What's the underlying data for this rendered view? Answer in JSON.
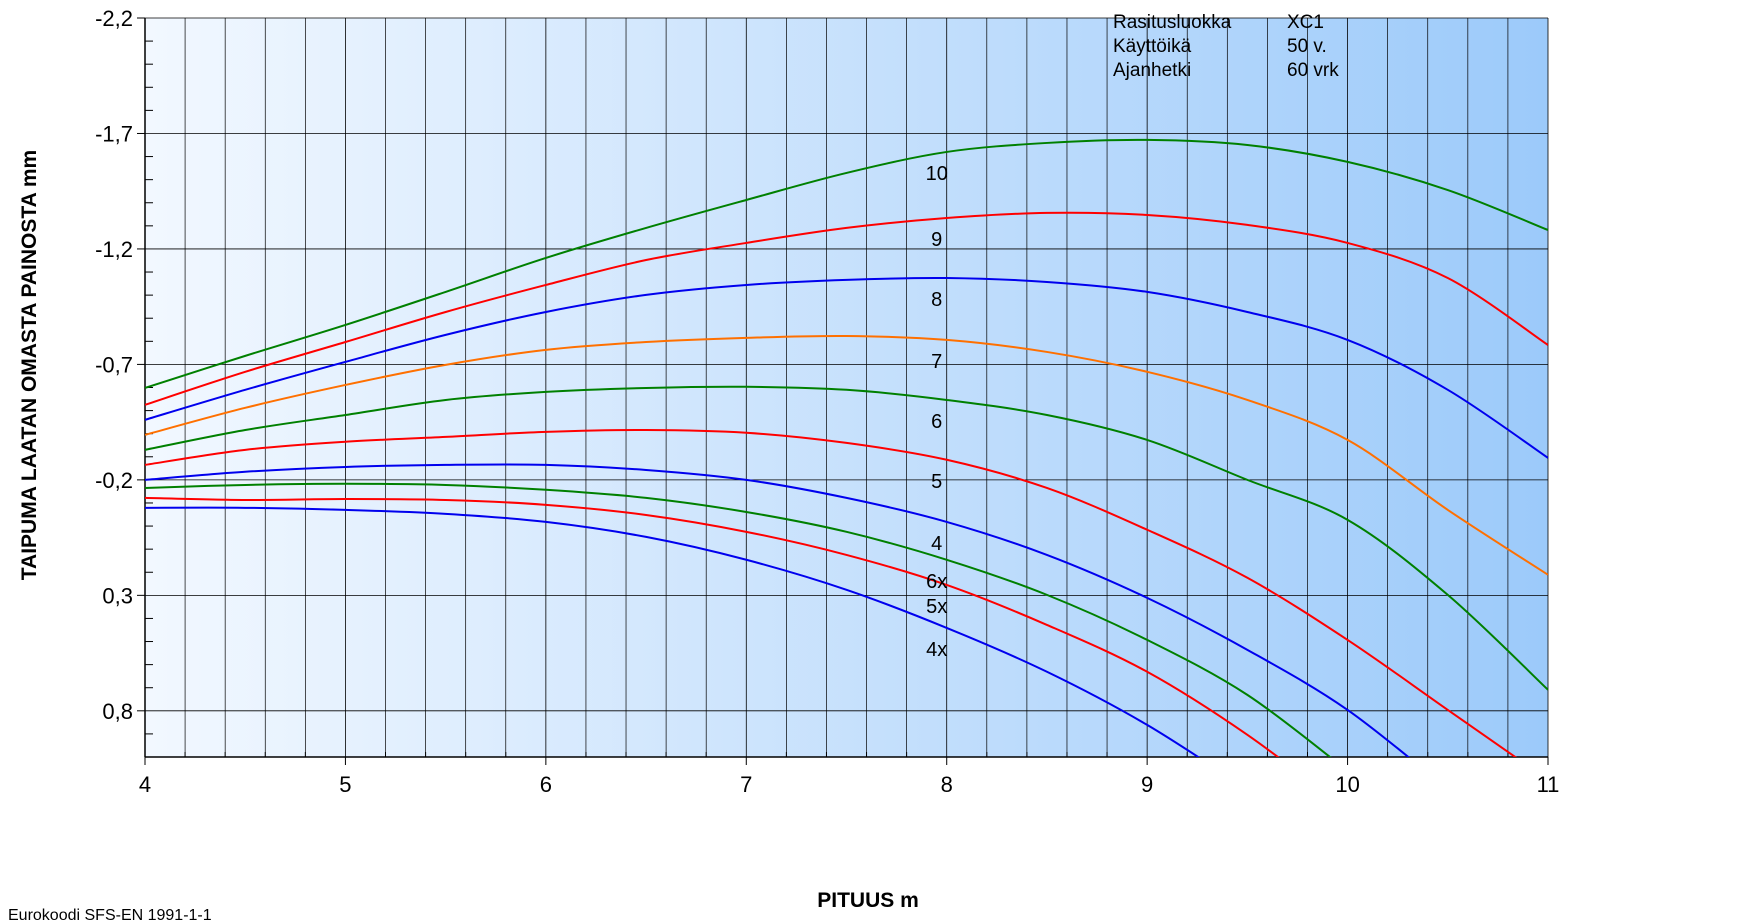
{
  "chart_data": {
    "type": "line",
    "x_title": "PITUUS m",
    "y_title": "TAIPUMA LAATAN OMASTA PAINOSTA mm",
    "footer": "Eurokoodi SFS-EN 1991-1-1",
    "info": [
      [
        "Rasitusluokka",
        "XC1"
      ],
      [
        "Käyttöikä",
        "50 v."
      ],
      [
        "Ajanhetki",
        "60 vrk"
      ]
    ],
    "x": [
      4,
      4.5,
      5,
      5.5,
      6,
      6.5,
      7,
      7.5,
      8,
      8.5,
      9,
      9.5,
      10,
      10.5,
      11
    ],
    "xlim": [
      4,
      11
    ],
    "xticks": [
      4,
      5,
      6,
      7,
      8,
      9,
      10,
      11
    ],
    "x_minor_ticks": [
      4.2,
      4.4,
      4.6,
      4.8,
      5.2,
      5.4,
      5.6,
      5.8,
      6.2,
      6.4,
      6.6,
      6.8,
      7.2,
      7.4,
      7.6,
      7.8,
      8.2,
      8.4,
      8.6,
      8.8,
      9.2,
      9.4,
      9.6,
      9.8,
      10.2,
      10.4,
      10.6,
      10.8
    ],
    "ylim": [
      -2.2,
      1.0
    ],
    "y_inverted": true,
    "yticks": [
      {
        "value": -2.2,
        "label": "-2,2"
      },
      {
        "value": -1.7,
        "label": "-1,7"
      },
      {
        "value": -1.2,
        "label": "-1,2"
      },
      {
        "value": -0.7,
        "label": "-0,7"
      },
      {
        "value": -0.2,
        "label": "-0,2"
      },
      {
        "value": 0.3,
        "label": "0,3"
      },
      {
        "value": 0.8,
        "label": "0,8"
      }
    ],
    "y_minor_ticks": [
      -2.1,
      -2.0,
      -1.9,
      -1.8,
      -1.6,
      -1.5,
      -1.4,
      -1.3,
      -1.1,
      -1.0,
      -0.9,
      -0.8,
      -0.6,
      -0.5,
      -0.4,
      -0.3,
      -0.1,
      0,
      0.1,
      0.2,
      0.4,
      0.5,
      0.6,
      0.7,
      0.9
    ],
    "grid": true,
    "series": [
      {
        "name": "10",
        "color": "#008000",
        "values": [
          -0.598,
          -0.737,
          -0.871,
          -1.014,
          -1.161,
          -1.291,
          -1.412,
          -1.529,
          -1.62,
          -1.659,
          -1.672,
          -1.65,
          -1.577,
          -1.455,
          -1.282
        ]
      },
      {
        "name": "9",
        "color": "#ff0000",
        "values": [
          -0.525,
          -0.668,
          -0.797,
          -0.927,
          -1.044,
          -1.152,
          -1.226,
          -1.291,
          -1.334,
          -1.356,
          -1.347,
          -1.304,
          -1.226,
          -1.074,
          -0.784
        ]
      },
      {
        "name": "8",
        "color": "#0000ee",
        "values": [
          -0.46,
          -0.59,
          -0.711,
          -0.828,
          -0.927,
          -1.001,
          -1.044,
          -1.066,
          -1.074,
          -1.057,
          -1.014,
          -0.927,
          -0.806,
          -0.59,
          -0.295
        ]
      },
      {
        "name": "7",
        "color": "#ff7000",
        "values": [
          -0.395,
          -0.512,
          -0.611,
          -0.698,
          -0.763,
          -0.797,
          -0.815,
          -0.823,
          -0.806,
          -0.754,
          -0.668,
          -0.546,
          -0.373,
          -0.07,
          0.211
        ]
      },
      {
        "name": "6",
        "color": "#008000",
        "values": [
          -0.33,
          -0.416,
          -0.481,
          -0.546,
          -0.581,
          -0.598,
          -0.603,
          -0.59,
          -0.546,
          -0.481,
          -0.373,
          -0.2,
          -0.027,
          0.298,
          0.709
        ]
      },
      {
        "name": "5",
        "color": "#ff0000",
        "values": [
          -0.265,
          -0.33,
          -0.365,
          -0.386,
          -0.408,
          -0.416,
          -0.404,
          -0.36,
          -0.287,
          -0.165,
          0.016,
          0.224,
          0.493,
          0.796,
          1.099
        ]
      },
      {
        "name": "4",
        "color": "#0000ee",
        "values": [
          -0.2,
          -0.235,
          -0.256,
          -0.265,
          -0.265,
          -0.243,
          -0.2,
          -0.122,
          -0.018,
          0.125,
          0.311,
          0.536,
          0.796,
          1.14,
          null
        ]
      },
      {
        "name": "6x",
        "color": "#008000",
        "values": [
          -0.165,
          -0.178,
          -0.183,
          -0.178,
          -0.157,
          -0.122,
          -0.061,
          0.025,
          0.146,
          0.298,
          0.493,
          0.731,
          1.06,
          null,
          null
        ]
      },
      {
        "name": "5x",
        "color": "#ff0000",
        "values": [
          -0.122,
          -0.113,
          -0.117,
          -0.113,
          -0.092,
          -0.048,
          0.025,
          0.125,
          0.255,
          0.428,
          0.631,
          0.904,
          1.23,
          null,
          null
        ]
      },
      {
        "name": "4x",
        "color": "#0000ee",
        "values": [
          -0.079,
          -0.079,
          -0.07,
          -0.053,
          -0.018,
          0.047,
          0.146,
          0.276,
          0.441,
          0.631,
          0.861,
          1.14,
          null,
          null,
          null
        ]
      }
    ]
  }
}
